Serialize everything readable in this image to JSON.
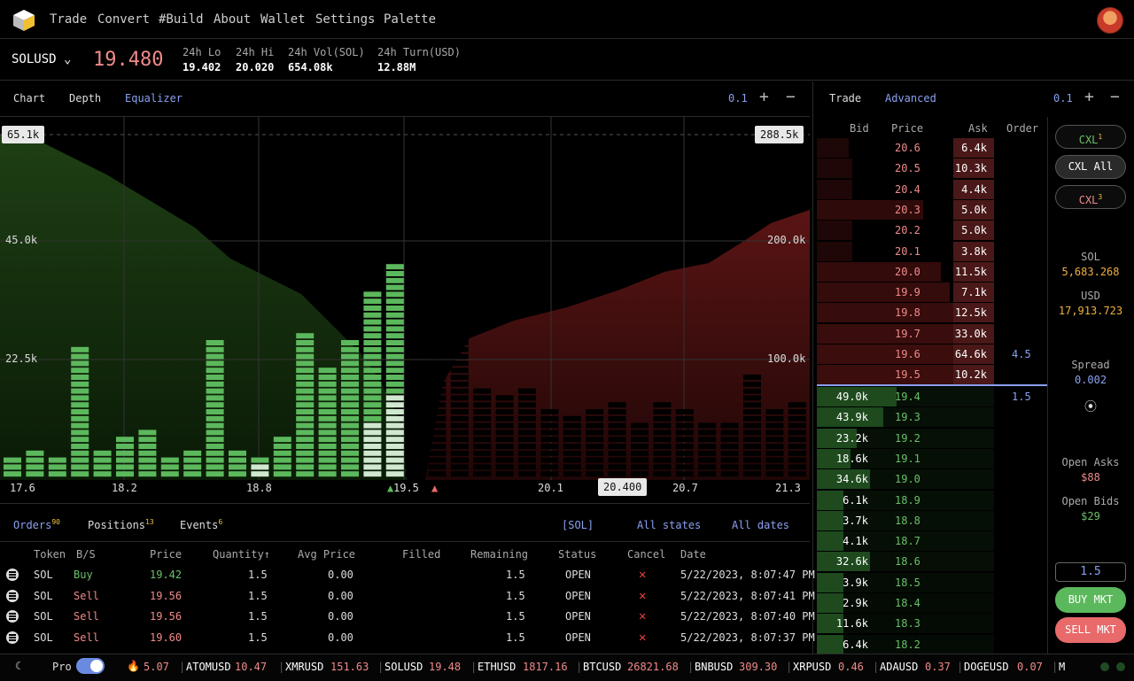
{
  "nav": {
    "items": [
      "Trade",
      "Convert",
      "#Build",
      "About",
      "Wallet",
      "Settings",
      "Palette"
    ]
  },
  "ticker": {
    "pair": "SOLUSD",
    "last_price": "19.480",
    "stats": [
      {
        "label": "24h Lo",
        "value": "19.402"
      },
      {
        "label": "24h Hi",
        "value": "20.020"
      },
      {
        "label": "24h Vol(SOL)",
        "value": "654.08k"
      },
      {
        "label": "24h Turn(USD)",
        "value": "12.88M"
      }
    ]
  },
  "chart_panel": {
    "tabs": [
      "Chart",
      "Depth",
      "Equalizer"
    ],
    "active_tab": "Equalizer",
    "zoom": "0.1",
    "left_top_box": "65.1k",
    "right_top_box": "288.5k",
    "left_ticks": [
      "45.0k",
      "22.5k"
    ],
    "right_ticks": [
      "200.0k",
      "100.0k"
    ],
    "x_ticks": [
      "17.6",
      "18.2",
      "18.8",
      "19.5",
      "20.1",
      "20.7",
      "21.3"
    ],
    "x_marker": "20.400"
  },
  "chart_data": {
    "type": "bar",
    "bid_bars": [
      3,
      4,
      3,
      19,
      4,
      6,
      7,
      3,
      4,
      20,
      4,
      3,
      6,
      21,
      16,
      20,
      27,
      31
    ],
    "ask_bars": [
      9,
      25,
      28,
      13,
      12,
      13,
      10,
      9,
      10,
      11,
      8,
      11,
      10,
      8,
      8,
      15,
      10,
      11
    ],
    "colors": {
      "bid": "#5cb85c",
      "ask": "#e86a6a",
      "bid_depth": "#1e3f14",
      "ask_depth": "#5a1414"
    }
  },
  "orders": {
    "tabs": [
      {
        "label": "Orders",
        "count": "90"
      },
      {
        "label": "Positions",
        "count": "13"
      },
      {
        "label": "Events",
        "count": "6"
      }
    ],
    "filters": [
      "[SOL]",
      "All states",
      "All dates"
    ],
    "columns": [
      "Token",
      "B/S",
      "Price",
      "Quantity↑",
      "Avg Price",
      "Filled",
      "Remaining",
      "Status",
      "Cancel",
      "Date"
    ],
    "rows": [
      {
        "token": "SOL",
        "side": "Buy",
        "price": "19.42",
        "qty": "1.5",
        "avg": "0.00",
        "remaining": "1.5",
        "status": "OPEN",
        "date": "5/22/2023, 8:07:47 PM"
      },
      {
        "token": "SOL",
        "side": "Sell",
        "price": "19.56",
        "qty": "1.5",
        "avg": "0.00",
        "remaining": "1.5",
        "status": "OPEN",
        "date": "5/22/2023, 8:07:41 PM"
      },
      {
        "token": "SOL",
        "side": "Sell",
        "price": "19.56",
        "qty": "1.5",
        "avg": "0.00",
        "remaining": "1.5",
        "status": "OPEN",
        "date": "5/22/2023, 8:07:40 PM"
      },
      {
        "token": "SOL",
        "side": "Sell",
        "price": "19.60",
        "qty": "1.5",
        "avg": "0.00",
        "remaining": "1.5",
        "status": "OPEN",
        "date": "5/22/2023, 8:07:37 PM"
      }
    ]
  },
  "orderbook": {
    "tabs": [
      "Trade",
      "Advanced"
    ],
    "zoom": "0.1",
    "columns": [
      "Bid",
      "Price",
      "Ask",
      "Order"
    ],
    "asks": [
      {
        "price": "20.6",
        "size": "6.4k",
        "depth": 0.18,
        "bar": 0.2,
        "order": ""
      },
      {
        "price": "20.5",
        "size": "10.3k",
        "depth": 0.2,
        "bar": 0.2,
        "order": ""
      },
      {
        "price": "20.4",
        "size": "4.4k",
        "depth": 0.2,
        "bar": 0.16,
        "order": ""
      },
      {
        "price": "20.3",
        "size": "5.0k",
        "depth": 0.6,
        "bar": 0.18,
        "order": ""
      },
      {
        "price": "20.2",
        "size": "5.0k",
        "depth": 0.2,
        "bar": 0.18,
        "order": ""
      },
      {
        "price": "20.1",
        "size": "3.8k",
        "depth": 0.2,
        "bar": 0.14,
        "order": ""
      },
      {
        "price": "20.0",
        "size": "11.5k",
        "depth": 0.7,
        "bar": 0.2,
        "order": ""
      },
      {
        "price": "19.9",
        "size": "7.1k",
        "depth": 0.75,
        "bar": 0.2,
        "order": ""
      },
      {
        "price": "19.8",
        "size": "12.5k",
        "depth": 0.8,
        "bar": 0.2,
        "order": ""
      },
      {
        "price": "19.7",
        "size": "33.0k",
        "depth": 0.85,
        "bar": 0.2,
        "order": ""
      },
      {
        "price": "19.6",
        "size": "64.6k",
        "depth": 0.9,
        "bar": 0.2,
        "order": "4.5"
      },
      {
        "price": "19.5",
        "size": "10.2k",
        "depth": 0.9,
        "bar": 0.2,
        "order": ""
      }
    ],
    "bids": [
      {
        "price": "19.4",
        "size": "49.0k",
        "depth": 0.6,
        "bar": 0.6,
        "order": "1.5"
      },
      {
        "price": "19.3",
        "size": "43.9k",
        "depth": 0.6,
        "bar": 0.5,
        "order": ""
      },
      {
        "price": "19.2",
        "size": "23.2k",
        "depth": 0.55,
        "bar": 0.3,
        "order": ""
      },
      {
        "price": "19.1",
        "size": "18.6k",
        "depth": 0.5,
        "bar": 0.25,
        "order": ""
      },
      {
        "price": "19.0",
        "size": "34.6k",
        "depth": 0.5,
        "bar": 0.4,
        "order": ""
      },
      {
        "price": "18.9",
        "size": "6.1k",
        "depth": 0.5,
        "bar": 0.15,
        "order": ""
      },
      {
        "price": "18.8",
        "size": "3.7k",
        "depth": 0.5,
        "bar": 0.1,
        "order": ""
      },
      {
        "price": "18.7",
        "size": "4.1k",
        "depth": 0.5,
        "bar": 0.1,
        "order": ""
      },
      {
        "price": "18.6",
        "size": "32.6k",
        "depth": 0.45,
        "bar": 0.4,
        "order": ""
      },
      {
        "price": "18.5",
        "size": "3.9k",
        "depth": 0.3,
        "bar": 0.1,
        "order": ""
      },
      {
        "price": "18.4",
        "size": "2.9k",
        "depth": 0.25,
        "bar": 0.1,
        "order": ""
      },
      {
        "price": "18.3",
        "size": "11.6k",
        "depth": 0.25,
        "bar": 0.2,
        "order": ""
      },
      {
        "price": "18.2",
        "size": "6.4k",
        "depth": 0.25,
        "bar": 0.15,
        "order": ""
      }
    ]
  },
  "sidebar": {
    "cxl_left": {
      "label": "CXL",
      "count": "1"
    },
    "cxl_all": "CXL All",
    "cxl_right": {
      "label": "CXL",
      "count": "3"
    },
    "sol_label": "SOL",
    "sol_value": "5,683.268",
    "usd_label": "USD",
    "usd_value": "17,913.723",
    "spread_label": "Spread",
    "spread_value": "0.002",
    "open_asks_label": "Open Asks",
    "open_asks_value": "$88",
    "open_bids_label": "Open Bids",
    "open_bids_value": "$29",
    "qty": "1.5",
    "buy_label": "BUY MKT",
    "sell_label": "SELL MKT"
  },
  "bottom": {
    "pro_label": "Pro",
    "tickers": [
      {
        "sym": "",
        "px": "5.07"
      },
      {
        "sym": "ATOMUSD",
        "px": "10.47"
      },
      {
        "sym": "XMRUSD",
        "px": "151.63"
      },
      {
        "sym": "SOLUSD",
        "px": "19.48"
      },
      {
        "sym": "ETHUSD",
        "px": "1817.16"
      },
      {
        "sym": "BTCUSD",
        "px": "26821.68"
      },
      {
        "sym": "BNBUSD",
        "px": "309.30"
      },
      {
        "sym": "XRPUSD",
        "px": "0.46"
      },
      {
        "sym": "ADAUSD",
        "px": "0.37"
      },
      {
        "sym": "DOGEUSD",
        "px": "0.07"
      },
      {
        "sym": "M",
        "px": ""
      }
    ]
  }
}
